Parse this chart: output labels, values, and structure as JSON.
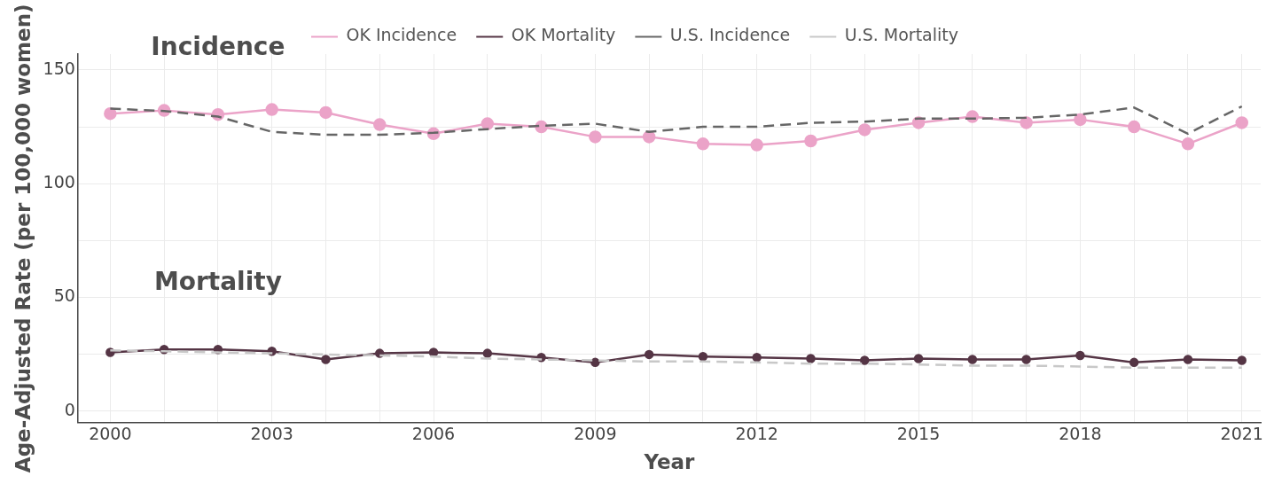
{
  "chart_data": {
    "type": "line",
    "xlabel": "Year",
    "ylabel": "Age-Adjusted Rate (per 100,000 women)",
    "x": [
      2000,
      2001,
      2002,
      2003,
      2004,
      2005,
      2006,
      2007,
      2008,
      2009,
      2010,
      2011,
      2012,
      2013,
      2014,
      2015,
      2016,
      2017,
      2018,
      2019,
      2020,
      2021
    ],
    "series": [
      {
        "name": "OK Incidence",
        "color": "#eba3c8",
        "marker": "circle",
        "line_style": "solid",
        "values": [
          130.8,
          132.2,
          130.4,
          132.6,
          131.3,
          126,
          122,
          126.4,
          125,
          120.6,
          120.6,
          117.5,
          117,
          118.8,
          123.7,
          126.8,
          129.5,
          126.8,
          128.2,
          125,
          117.5,
          126.8
        ]
      },
      {
        "name": "OK Mortality",
        "color": "#553545",
        "marker": "circle",
        "line_style": "solid",
        "values": [
          25.8,
          27.1,
          27.1,
          26.3,
          22.7,
          25.4,
          25.8,
          25.4,
          23.6,
          21.4,
          24.9,
          24,
          23.6,
          23.1,
          22.3,
          23.1,
          22.7,
          22.7,
          24.5,
          21.4,
          22.7,
          22.3
        ]
      },
      {
        "name": "U.S. Incidence",
        "color": "#666666",
        "marker": "none",
        "line_style": "dashed",
        "values": [
          133,
          132,
          129.5,
          122.8,
          121.5,
          121.5,
          122.4,
          124,
          125.5,
          126.4,
          122.8,
          125,
          125,
          126.8,
          127.3,
          128.6,
          128.6,
          129,
          130.4,
          133.5,
          122,
          134
        ]
      },
      {
        "name": "U.S. Mortality",
        "color": "#c8c8c8",
        "marker": "none",
        "line_style": "dashed",
        "values": [
          26.7,
          26.3,
          25.8,
          25.4,
          24.9,
          24.5,
          24,
          23.1,
          22.7,
          22.3,
          21.8,
          21.8,
          21.4,
          20.9,
          20.9,
          20.5,
          20,
          20,
          19.6,
          19.1,
          19.1,
          19.1
        ]
      }
    ],
    "xlim": [
      1999.4,
      2021.35
    ],
    "xticks": [
      2000,
      {
        "value": 2001,
        "label": null
      },
      {
        "value": 2002,
        "label": null
      },
      2003,
      {
        "value": 2004,
        "label": null
      },
      {
        "value": 2005,
        "label": null
      },
      2006,
      {
        "value": 2007,
        "label": null
      },
      {
        "value": 2008,
        "label": null
      },
      2009,
      {
        "value": 2010,
        "label": null
      },
      {
        "value": 2011,
        "label": null
      },
      2012,
      {
        "value": 2013,
        "label": null
      },
      {
        "value": 2014,
        "label": null
      },
      2015,
      {
        "value": 2016,
        "label": null
      },
      {
        "value": 2017,
        "label": null
      },
      2018,
      {
        "value": 2019,
        "label": null
      },
      {
        "value": 2020,
        "label": null
      },
      2021
    ],
    "ylim": [
      -5,
      157
    ],
    "yticks": [
      0,
      {
        "value": 25,
        "label": null
      },
      50,
      {
        "value": 75,
        "label": null
      },
      100,
      {
        "value": 125,
        "label": null
      },
      150
    ],
    "annotations": [
      "Incidence",
      "Mortality"
    ],
    "grid": true,
    "legend": "top"
  }
}
